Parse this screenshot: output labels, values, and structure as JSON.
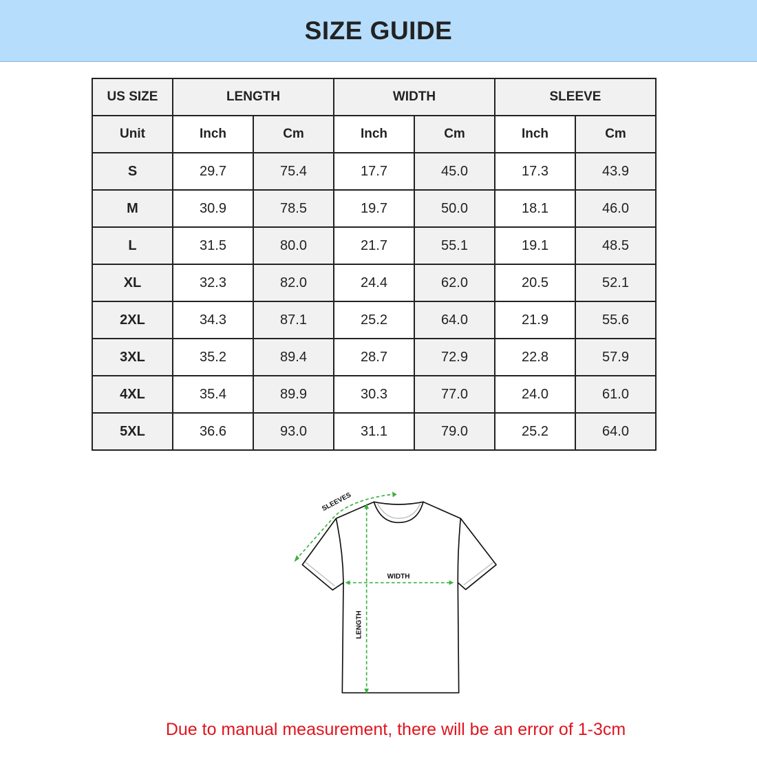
{
  "title": "SIZE GUIDE",
  "table": {
    "header": [
      "US SIZE",
      "LENGTH",
      "WIDTH",
      "SLEEVE"
    ],
    "units": [
      "Unit",
      "Inch",
      "Cm",
      "Inch",
      "Cm",
      "Inch",
      "Cm"
    ],
    "rows": [
      [
        "S",
        "29.7",
        "75.4",
        "17.7",
        "45.0",
        "17.3",
        "43.9"
      ],
      [
        "M",
        "30.9",
        "78.5",
        "19.7",
        "50.0",
        "18.1",
        "46.0"
      ],
      [
        "L",
        "31.5",
        "80.0",
        "21.7",
        "55.1",
        "19.1",
        "48.5"
      ],
      [
        "XL",
        "32.3",
        "82.0",
        "24.4",
        "62.0",
        "20.5",
        "52.1"
      ],
      [
        "2XL",
        "34.3",
        "87.1",
        "25.2",
        "64.0",
        "21.9",
        "55.6"
      ],
      [
        "3XL",
        "35.2",
        "89.4",
        "28.7",
        "72.9",
        "22.8",
        "57.9"
      ],
      [
        "4XL",
        "35.4",
        "89.9",
        "30.3",
        "77.0",
        "24.0",
        "61.0"
      ],
      [
        "5XL",
        "36.6",
        "93.0",
        "31.1",
        "79.0",
        "25.2",
        "64.0"
      ]
    ]
  },
  "diagram": {
    "sleeves_label": "SLEEVES",
    "width_label": "WIDTH",
    "length_label": "LENGTH",
    "measure_color": "#3cb043"
  },
  "note": "Due to manual measurement, there will be an error of 1-3cm",
  "colors": {
    "banner": "#b6ddfb",
    "note": "#e0141e"
  }
}
